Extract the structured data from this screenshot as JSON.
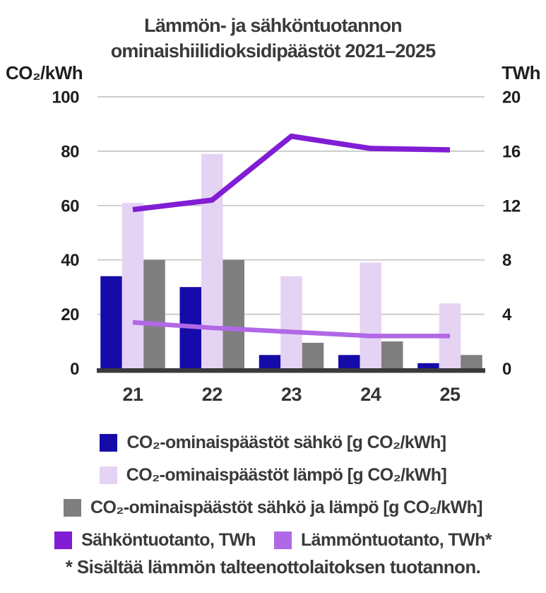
{
  "title": {
    "line1": "Lämmön- ja sähköntuotannon",
    "line2": "ominaishiilidioksidipäästöt 2021–2025"
  },
  "axes": {
    "left_unit": "CO₂/kWh",
    "right_unit": "TWh"
  },
  "footnote": "* Sisältää lämmön talteenottolaitoksen tuotannon.",
  "colors": {
    "bar_electricity": "#150ba8",
    "bar_heat": "#e5d3f4",
    "bar_combined": "#7f7f7f",
    "line_electricity": "#811dd4",
    "line_heat": "#b168e6",
    "gridline": "#c6c6c6",
    "baseline": "#3a3a3a",
    "axis_tick_text": "#1f1f1f",
    "x_tick_text": "#333333",
    "title_text": "#3a3a3a"
  },
  "chart_data": {
    "type": "combo",
    "title": "Lämmön- ja sähköntuotannon ominaishiilidioksidipäästöt 2021–2025",
    "categories": [
      "21",
      "22",
      "23",
      "24",
      "25"
    ],
    "bar_series": [
      {
        "name": "CO₂-ominaispäästöt sähkö [g CO₂/kWh]",
        "axis": "left",
        "color": "#150ba8",
        "values": [
          34,
          30,
          5,
          5,
          2
        ]
      },
      {
        "name": "CO₂-ominaispäästöt lämpö [g CO₂/kWh]",
        "axis": "left",
        "color": "#e5d3f4",
        "values": [
          61,
          79,
          34,
          39,
          24
        ]
      },
      {
        "name": "CO₂-ominaispäästöt sähkö ja lämpö [g CO₂/kWh]",
        "axis": "left",
        "color": "#7f7f7f",
        "values": [
          40,
          40,
          9.5,
          10,
          5
        ]
      }
    ],
    "line_series": [
      {
        "name": "Sähköntuotanto, TWh",
        "axis": "right",
        "color": "#811dd4",
        "values": [
          11.7,
          12.4,
          17.1,
          16.2,
          16.1
        ]
      },
      {
        "name": "Lämmöntuotanto, TWh*",
        "axis": "right",
        "color": "#b168e6",
        "values": [
          3.4,
          3.0,
          2.7,
          2.4,
          2.4
        ]
      }
    ],
    "left_axis": {
      "label": "CO₂/kWh",
      "ticks": [
        0,
        20,
        40,
        60,
        80,
        100
      ],
      "range": [
        0,
        100
      ]
    },
    "right_axis": {
      "label": "TWh",
      "ticks": [
        0,
        4,
        8,
        12,
        16,
        20
      ],
      "range": [
        0,
        20
      ]
    },
    "xlabel": "",
    "ylabel": "CO₂/kWh",
    "grid": true,
    "legend_position": "bottom"
  },
  "legend": {
    "rows": [
      [
        {
          "color": "#150ba8",
          "label": "CO₂-ominaispäästöt sähkö [g CO₂/kWh]"
        }
      ],
      [
        {
          "color": "#e5d3f4",
          "label": "CO₂-ominaispäästöt lämpö [g CO₂/kWh]"
        }
      ],
      [
        {
          "color": "#7f7f7f",
          "label": "CO₂-ominaispäästöt sähkö ja lämpö [g CO₂/kWh]"
        }
      ],
      [
        {
          "color": "#811dd4",
          "label": "Sähköntuotanto, TWh"
        },
        {
          "color": "#b168e6",
          "label": "Lämmöntuotanto, TWh*"
        }
      ]
    ]
  }
}
